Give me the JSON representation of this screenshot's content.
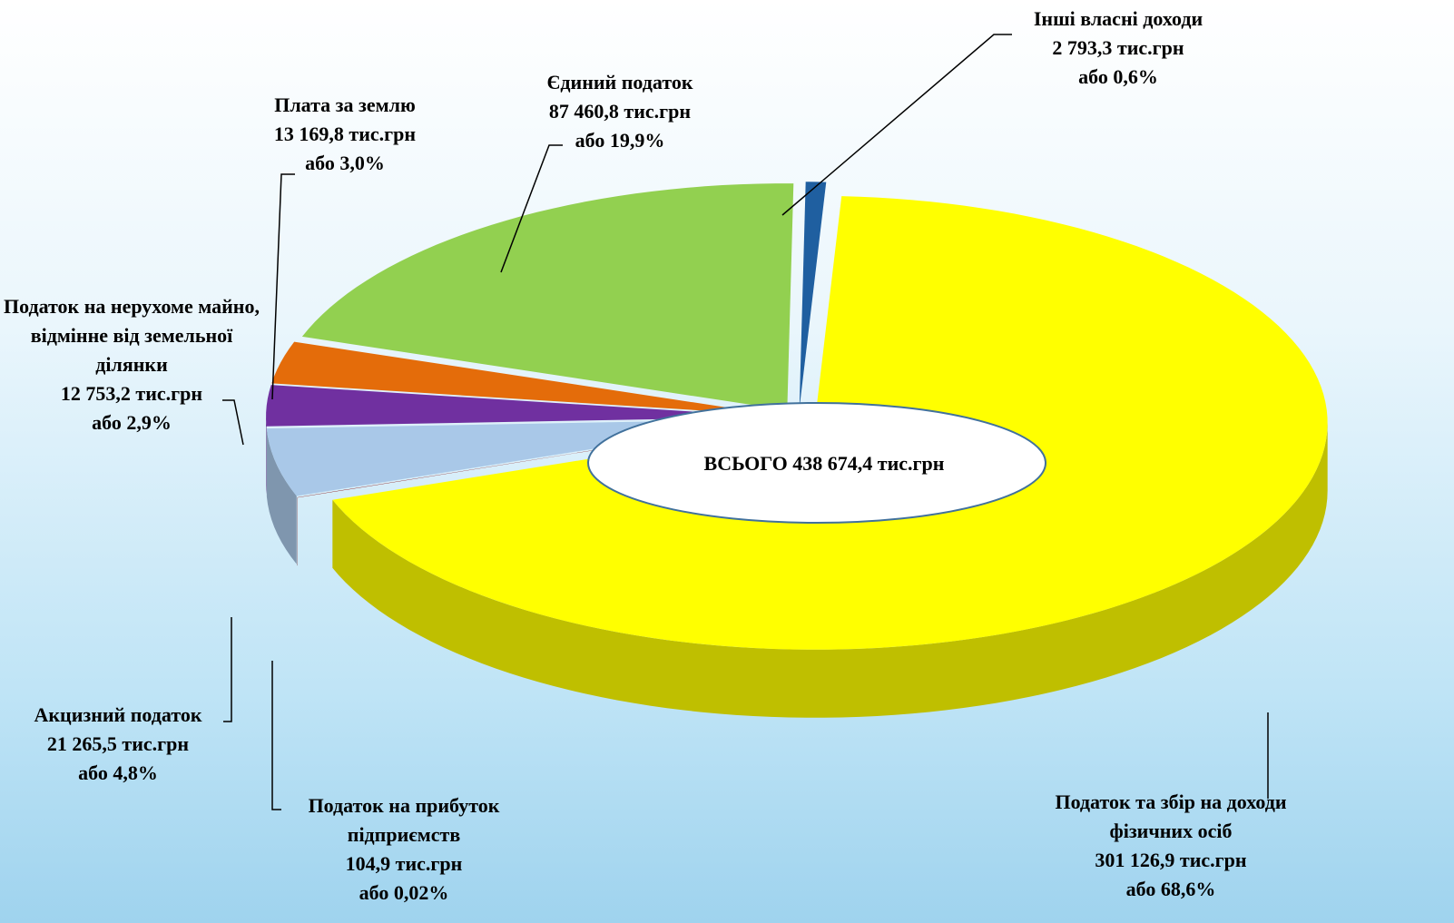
{
  "chart_data": {
    "type": "pie",
    "total_label": "ВСЬОГО 438 674,4 тис.грн",
    "categories": [
      "Податок та збір на доходи фізичних осіб",
      "Податок на прибуток підприємств",
      "Акцизний податок",
      "Податок на нерухоме майно, відмінне від земельної ділянки",
      "Плата за землю",
      "Єдиний податок",
      "Інші власні доходи"
    ],
    "values": [
      301126.9,
      104.9,
      21265.5,
      12753.2,
      13169.8,
      87460.8,
      2793.3
    ],
    "value_labels": [
      "301 126,9 тис.грн",
      "104,9 тис.грн",
      "21 265,5 тис.грн",
      "12 753,2 тис.грн",
      "13 169,8 тис.грн",
      "87 460,8 тис.грн",
      "2 793,3 тис.грн"
    ],
    "percents": [
      68.6,
      0.02,
      4.8,
      2.9,
      3.0,
      19.9,
      0.6
    ],
    "percent_labels": [
      "або 68,6%",
      "або 0,02%",
      "або 4,8%",
      "або 2,9%",
      "або 3,0%",
      "або 19,9%",
      "або 0,6%"
    ],
    "colors": [
      "#ffff00",
      "#800000",
      "#a9c8e8",
      "#7030a0",
      "#e46c0a",
      "#92d050",
      "#1f5fa0"
    ]
  }
}
